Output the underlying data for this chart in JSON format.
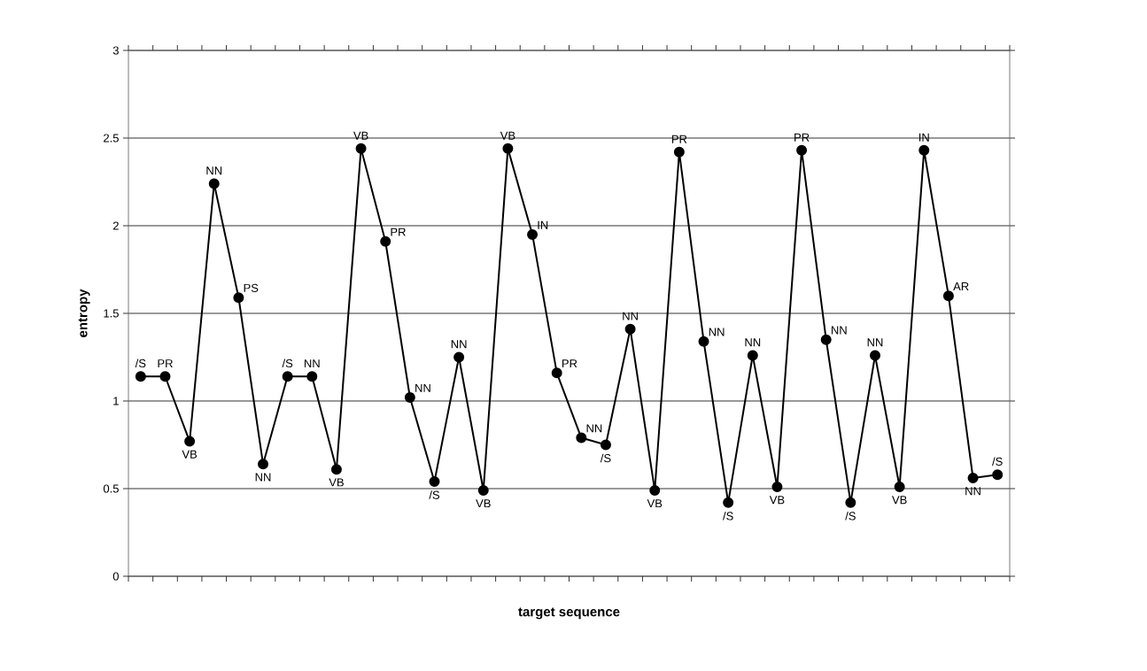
{
  "chart_data": {
    "type": "line",
    "xlabel": "target sequence",
    "ylabel": "entropy",
    "categories": [
      null,
      null,
      null,
      null,
      null,
      null,
      null,
      null,
      null,
      null,
      null,
      null,
      null,
      null,
      null,
      null,
      null,
      null,
      null,
      null,
      null,
      null,
      null,
      null,
      null,
      null,
      null,
      null,
      null,
      null,
      null,
      null,
      null,
      null,
      null,
      null
    ],
    "values": [
      1.14,
      1.14,
      0.77,
      2.24,
      1.59,
      0.64,
      1.14,
      1.14,
      0.61,
      2.44,
      1.91,
      1.02,
      0.54,
      1.25,
      0.49,
      2.44,
      1.95,
      1.16,
      0.79,
      0.75,
      1.41,
      0.49,
      2.42,
      1.34,
      0.42,
      1.26,
      0.51,
      2.43,
      1.35,
      0.42,
      1.26,
      0.51,
      2.43,
      1.6,
      0.56,
      0.58
    ],
    "value_labels": [
      "/S",
      "PR",
      "VB",
      "NN",
      "PS",
      "NN",
      "/S",
      "NN",
      "VB",
      "VB",
      "PR",
      "NN",
      "/S",
      "NN",
      "VB",
      "VB",
      "IN",
      "PR",
      "NN",
      "/S",
      "NN",
      "VB",
      "PR",
      "NN",
      "/S",
      "NN",
      "VB",
      "PR",
      "NN",
      "/S",
      "NN",
      "VB",
      "IN",
      "AR",
      "NN",
      "/S"
    ],
    "color": "#000000",
    "ylim": [
      0,
      3
    ],
    "yticks": [
      0,
      0.5,
      1,
      1.5,
      2,
      2.5,
      3
    ],
    "grid": "y",
    "marker": "circle",
    "line_style": "solid"
  }
}
